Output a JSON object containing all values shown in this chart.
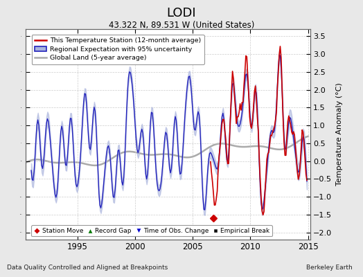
{
  "title": "LODI",
  "subtitle": "43.322 N, 89.531 W (United States)",
  "ylabel": "Temperature Anomaly (°C)",
  "xlabel_left": "Data Quality Controlled and Aligned at Breakpoints",
  "xlabel_right": "Berkeley Earth",
  "xlim": [
    1990.5,
    2015.2
  ],
  "ylim": [
    -2.2,
    3.7
  ],
  "yticks": [
    -2,
    -1.5,
    -1,
    -0.5,
    0,
    0.5,
    1,
    1.5,
    2,
    2.5,
    3,
    3.5
  ],
  "xticks": [
    1995,
    2000,
    2005,
    2010,
    2015
  ],
  "bg_color": "#e8e8e8",
  "plot_bg_color": "#ffffff",
  "global_land_color": "#aaaaaa",
  "regional_fill_color": "#aab4dd",
  "regional_line_color": "#2222bb",
  "station_line_color": "#cc0000",
  "station_move_color": "#cc0000",
  "record_gap_color": "#007700",
  "obs_change_color": "#0000cc",
  "empirical_break_color": "#111111",
  "station_move_x": 2006.8,
  "station_move_y": -1.6,
  "station_start_year": 2006.5
}
